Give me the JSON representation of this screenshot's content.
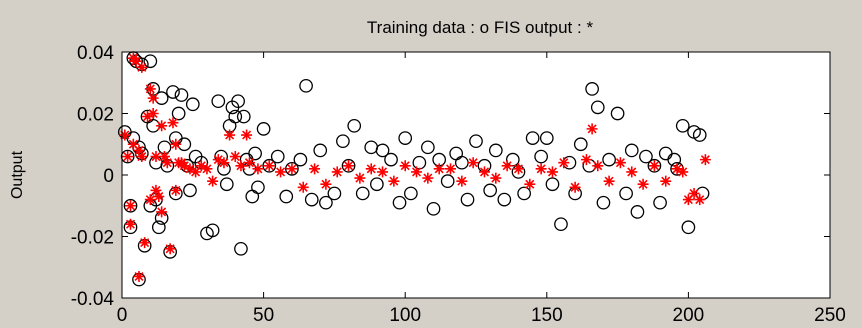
{
  "chart_data": {
    "type": "scatter",
    "title": "Training data : o   FIS output : *",
    "xlabel": "",
    "ylabel": "Output",
    "xlim": [
      0,
      250
    ],
    "ylim": [
      -0.04,
      0.04
    ],
    "xticks": [
      "0",
      "50",
      "100",
      "150",
      "200",
      "250"
    ],
    "yticks": [
      "0.04",
      "0.02",
      "0",
      "-0.02",
      "-0.04"
    ],
    "grid": false,
    "colors": {
      "figure_bg": "#d4d0c8",
      "axes_bg": "#ffffff",
      "training": "#000000",
      "fis": "#ff0000"
    },
    "series": [
      {
        "name": "Training data",
        "marker": "circle",
        "x": [
          1,
          2,
          3,
          3,
          4,
          4,
          5,
          6,
          6,
          7,
          7,
          8,
          9,
          10,
          10,
          11,
          11,
          12,
          12,
          13,
          14,
          14,
          15,
          16,
          17,
          18,
          19,
          19,
          20,
          21,
          22,
          23,
          24,
          25,
          26,
          28,
          30,
          32,
          34,
          35,
          36,
          37,
          38,
          39,
          40,
          41,
          42,
          43,
          44,
          45,
          46,
          47,
          48,
          50,
          52,
          55,
          58,
          60,
          63,
          65,
          67,
          70,
          72,
          75,
          78,
          80,
          82,
          85,
          88,
          90,
          92,
          95,
          98,
          100,
          102,
          105,
          108,
          110,
          112,
          115,
          118,
          120,
          122,
          125,
          128,
          130,
          132,
          135,
          138,
          140,
          142,
          145,
          148,
          150,
          152,
          155,
          158,
          160,
          162,
          165,
          166,
          168,
          170,
          172,
          175,
          178,
          180,
          182,
          185,
          188,
          190,
          192,
          195,
          196,
          198,
          200,
          202,
          204,
          205
        ],
        "y": [
          0.014,
          0.006,
          -0.01,
          -0.017,
          0.038,
          0.012,
          0.037,
          0.009,
          -0.034,
          0.036,
          0.007,
          -0.023,
          0.019,
          0.037,
          -0.01,
          0.016,
          0.028,
          0.004,
          -0.008,
          -0.017,
          0.025,
          -0.014,
          0.009,
          0.003,
          -0.025,
          0.027,
          -0.006,
          0.012,
          0.02,
          0.026,
          0.01,
          0.003,
          -0.005,
          0.023,
          0.006,
          0.004,
          -0.019,
          -0.018,
          0.024,
          0.006,
          0.002,
          -0.003,
          0.016,
          0.022,
          0.019,
          0.024,
          -0.024,
          0.019,
          0.005,
          0.002,
          -0.007,
          0.007,
          -0.004,
          0.015,
          0.003,
          0.006,
          -0.007,
          0.002,
          0.005,
          0.029,
          -0.008,
          0.008,
          -0.009,
          -0.006,
          0.011,
          0.003,
          0.016,
          -0.006,
          0.009,
          -0.003,
          0.008,
          0.005,
          -0.009,
          0.012,
          -0.006,
          0.004,
          0.009,
          -0.011,
          0.005,
          -0.002,
          0.007,
          0.004,
          -0.008,
          0.011,
          0.003,
          -0.005,
          0.008,
          -0.008,
          0.005,
          0.001,
          -0.006,
          0.012,
          0.006,
          0.012,
          -0.003,
          -0.016,
          0.004,
          -0.006,
          0.01,
          0.003,
          0.028,
          0.022,
          -0.009,
          0.005,
          0.02,
          -0.006,
          0.008,
          -0.012,
          0.006,
          0.003,
          -0.009,
          0.007,
          0.005,
          0.002,
          0.016,
          -0.017,
          0.014,
          0.013,
          -0.006
        ]
      },
      {
        "name": "FIS output",
        "marker": "star",
        "x": [
          1,
          2,
          3,
          3,
          4,
          4,
          5,
          6,
          6,
          7,
          7,
          8,
          9,
          10,
          10,
          11,
          11,
          12,
          12,
          13,
          14,
          14,
          15,
          16,
          17,
          18,
          19,
          19,
          20,
          21,
          22,
          24,
          26,
          28,
          30,
          32,
          34,
          36,
          38,
          40,
          42,
          44,
          45,
          48,
          52,
          56,
          60,
          64,
          68,
          72,
          76,
          80,
          84,
          88,
          92,
          96,
          100,
          104,
          108,
          112,
          116,
          120,
          124,
          128,
          132,
          136,
          140,
          144,
          148,
          152,
          156,
          160,
          164,
          166,
          168,
          172,
          176,
          180,
          184,
          188,
          192,
          196,
          198,
          200,
          202,
          204,
          206
        ],
        "y": [
          0.013,
          0.006,
          -0.01,
          -0.016,
          0.038,
          0.01,
          0.037,
          0.008,
          -0.033,
          0.035,
          0.006,
          -0.022,
          0.019,
          0.028,
          -0.008,
          0.02,
          0.025,
          0.006,
          -0.005,
          -0.007,
          0.016,
          -0.012,
          0.006,
          0.004,
          -0.024,
          0.017,
          -0.005,
          0.01,
          0.004,
          0.004,
          0.003,
          0.002,
          0.001,
          0.003,
          0.002,
          -0.002,
          0.005,
          0.004,
          0.013,
          0.006,
          0.003,
          0.013,
          0.004,
          0.002,
          0.003,
          0.001,
          0.002,
          -0.004,
          0.002,
          -0.003,
          0.001,
          0.003,
          -0.001,
          0.002,
          0.001,
          -0.002,
          0.003,
          0.001,
          -0.001,
          0.002,
          0.002,
          -0.002,
          0.004,
          0.001,
          -0.001,
          0.003,
          0.002,
          -0.003,
          0.002,
          0.001,
          0.004,
          -0.004,
          0.005,
          0.015,
          0.003,
          -0.002,
          0.004,
          0.001,
          -0.003,
          0.003,
          -0.002,
          0.002,
          0.001,
          -0.008,
          -0.006,
          -0.008,
          0.005
        ]
      }
    ]
  }
}
